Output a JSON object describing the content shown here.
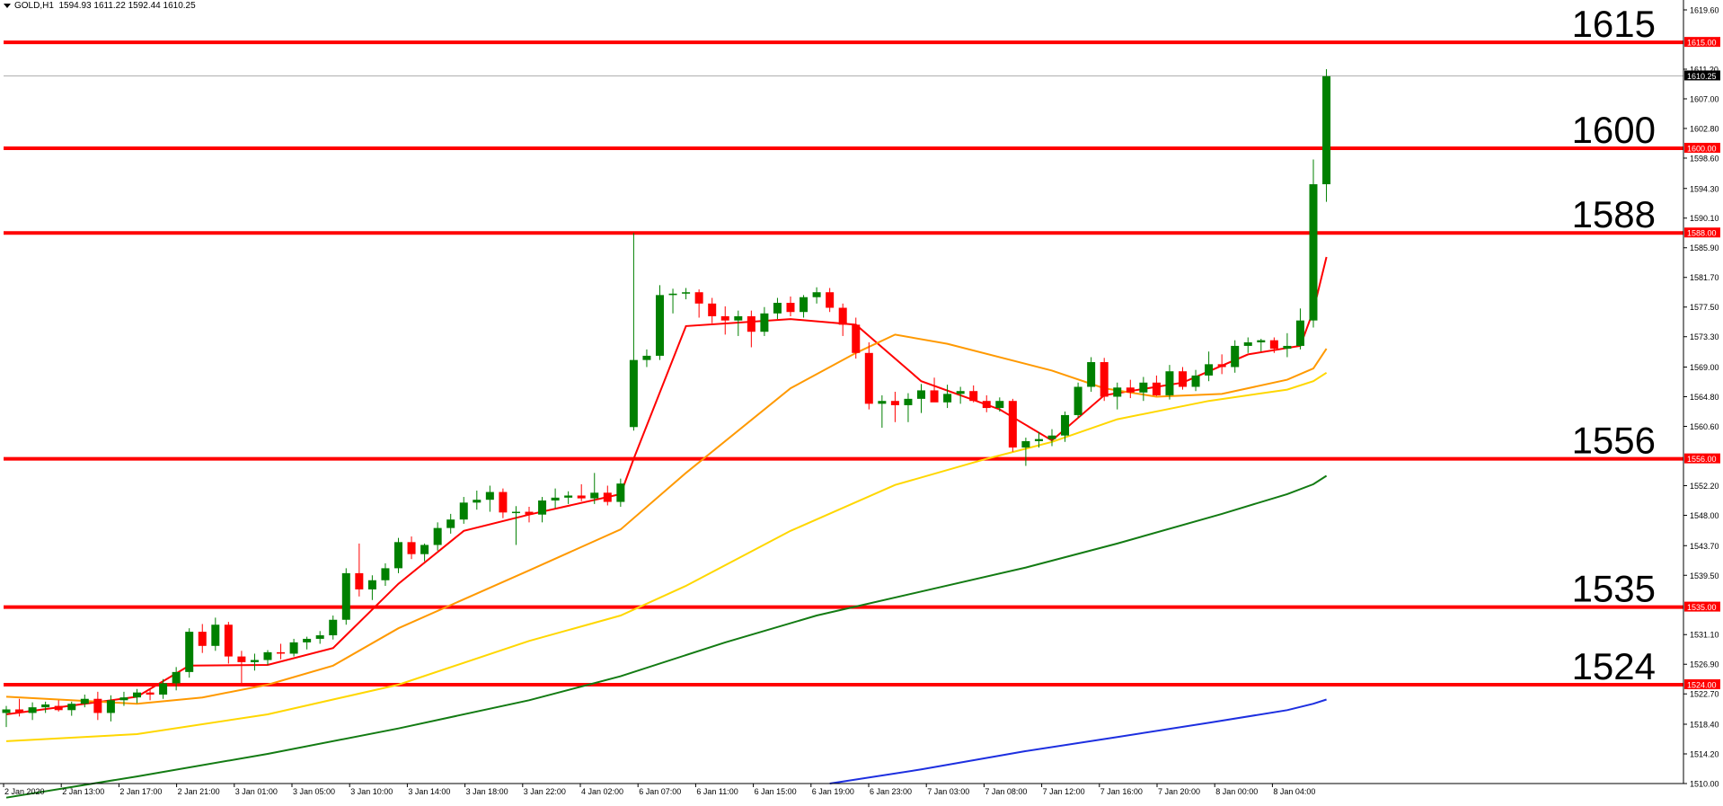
{
  "header": {
    "symbol_text": "GOLD,H1",
    "ohlc_text": "1594.93 1611.22 1592.44 1610.25"
  },
  "chart_data": {
    "type": "candlestick",
    "symbol": "GOLD",
    "timeframe": "H1",
    "ylim": [
      1510.0,
      1621.0
    ],
    "y_ticks": [
      "1619.60",
      "1615.00",
      "1611.20",
      "1610.25",
      "1607.00",
      "1602.80",
      "1600.00",
      "1598.60",
      "1594.30",
      "1590.10",
      "1588.00",
      "1585.90",
      "1581.70",
      "1577.50",
      "1573.30",
      "1569.00",
      "1564.80",
      "1560.60",
      "1556.00",
      "1552.20",
      "1548.00",
      "1543.70",
      "1539.50",
      "1535.00",
      "1531.10",
      "1526.90",
      "1524.00",
      "1522.70",
      "1518.40",
      "1514.20",
      "1510.00"
    ],
    "x_ticks": [
      "2 Jan 2020",
      "2 Jan 13:00",
      "2 Jan 17:00",
      "2 Jan 21:00",
      "3 Jan 01:00",
      "3 Jan 05:00",
      "3 Jan 10:00",
      "3 Jan 14:00",
      "3 Jan 18:00",
      "3 Jan 22:00",
      "4 Jan 02:00",
      "6 Jan 07:00",
      "6 Jan 11:00",
      "6 Jan 15:00",
      "6 Jan 19:00",
      "6 Jan 23:00",
      "7 Jan 03:00",
      "7 Jan 08:00",
      "7 Jan 12:00",
      "7 Jan 16:00",
      "7 Jan 20:00",
      "8 Jan 00:00",
      "8 Jan 04:00"
    ],
    "current_price": "1610.25",
    "levels": [
      {
        "value": 1615,
        "label": "1615",
        "axis_label": "1615.00"
      },
      {
        "value": 1600,
        "label": "1600",
        "axis_label": "1600.00"
      },
      {
        "value": 1588,
        "label": "1588",
        "axis_label": "1588.00"
      },
      {
        "value": 1556,
        "label": "1556",
        "axis_label": "1556.00"
      },
      {
        "value": 1535,
        "label": "1535",
        "axis_label": "1535.00"
      },
      {
        "value": 1524,
        "label": "1524",
        "axis_label": "1524.00"
      }
    ],
    "candles": [
      [
        1520.0,
        1521.0,
        1518.0,
        1520.5
      ],
      [
        1520.5,
        1522.0,
        1519.5,
        1520.0
      ],
      [
        1520.0,
        1521.5,
        1519.0,
        1520.8
      ],
      [
        1520.8,
        1521.6,
        1520.0,
        1521.2
      ],
      [
        1521.0,
        1521.8,
        1520.2,
        1520.4
      ],
      [
        1520.4,
        1521.6,
        1519.6,
        1521.3
      ],
      [
        1521.3,
        1522.6,
        1520.8,
        1522.0
      ],
      [
        1522.0,
        1523.0,
        1519.0,
        1520.0
      ],
      [
        1520.0,
        1522.5,
        1518.8,
        1521.8
      ],
      [
        1521.8,
        1523.0,
        1521.0,
        1522.2
      ],
      [
        1522.2,
        1523.4,
        1521.4,
        1522.9
      ],
      [
        1522.9,
        1523.5,
        1521.8,
        1522.6
      ],
      [
        1522.6,
        1524.8,
        1522.0,
        1524.2
      ],
      [
        1524.2,
        1526.5,
        1523.2,
        1525.8
      ],
      [
        1525.8,
        1532.0,
        1525.0,
        1531.5
      ],
      [
        1531.5,
        1532.6,
        1528.5,
        1529.5
      ],
      [
        1529.5,
        1533.5,
        1528.8,
        1532.5
      ],
      [
        1532.5,
        1532.9,
        1527.0,
        1528.0
      ],
      [
        1528.0,
        1528.8,
        1524.0,
        1527.2
      ],
      [
        1527.2,
        1528.4,
        1526.0,
        1527.5
      ],
      [
        1527.5,
        1528.9,
        1526.8,
        1528.6
      ],
      [
        1528.6,
        1529.8,
        1527.6,
        1528.4
      ],
      [
        1528.4,
        1530.5,
        1528.0,
        1530.0
      ],
      [
        1530.0,
        1530.8,
        1529.0,
        1530.5
      ],
      [
        1530.5,
        1531.6,
        1529.8,
        1531.0
      ],
      [
        1531.0,
        1533.8,
        1530.4,
        1533.2
      ],
      [
        1533.2,
        1540.5,
        1532.5,
        1539.8
      ],
      [
        1539.8,
        1544.0,
        1536.5,
        1537.5
      ],
      [
        1537.5,
        1539.5,
        1536.0,
        1538.8
      ],
      [
        1538.8,
        1541.2,
        1538.0,
        1540.5
      ],
      [
        1540.5,
        1544.8,
        1539.8,
        1544.2
      ],
      [
        1544.2,
        1545.0,
        1541.8,
        1542.5
      ],
      [
        1542.5,
        1544.0,
        1541.5,
        1543.8
      ],
      [
        1543.8,
        1547.0,
        1543.0,
        1546.2
      ],
      [
        1546.2,
        1548.2,
        1545.4,
        1547.4
      ],
      [
        1547.4,
        1550.6,
        1546.8,
        1549.8
      ],
      [
        1549.8,
        1551.5,
        1548.8,
        1550.2
      ],
      [
        1550.2,
        1552.2,
        1548.5,
        1551.3
      ],
      [
        1551.3,
        1551.8,
        1547.6,
        1548.4
      ],
      [
        1548.4,
        1549.3,
        1543.8,
        1548.5
      ],
      [
        1548.5,
        1549.2,
        1547.0,
        1548.1
      ],
      [
        1548.1,
        1550.6,
        1547.0,
        1550.1
      ],
      [
        1550.1,
        1551.8,
        1549.0,
        1550.5
      ],
      [
        1550.5,
        1551.4,
        1549.6,
        1550.8
      ],
      [
        1550.8,
        1552.4,
        1550.0,
        1550.4
      ],
      [
        1550.4,
        1554.0,
        1549.6,
        1551.2
      ],
      [
        1551.2,
        1552.2,
        1549.4,
        1549.9
      ],
      [
        1549.9,
        1553.2,
        1549.2,
        1552.5
      ],
      [
        1560.5,
        1588.0,
        1560.0,
        1570.0
      ],
      [
        1570.0,
        1571.5,
        1569.0,
        1570.6
      ],
      [
        1570.6,
        1580.6,
        1570.0,
        1579.2
      ],
      [
        1579.2,
        1580.1,
        1576.6,
        1579.4
      ],
      [
        1579.4,
        1580.2,
        1578.6,
        1579.6
      ],
      [
        1579.6,
        1580.0,
        1576.0,
        1578.0
      ],
      [
        1578.0,
        1578.8,
        1575.2,
        1576.2
      ],
      [
        1576.2,
        1577.6,
        1573.6,
        1575.6
      ],
      [
        1575.6,
        1577.0,
        1573.4,
        1576.2
      ],
      [
        1576.2,
        1577.0,
        1571.8,
        1574.0
      ],
      [
        1574.0,
        1577.5,
        1573.4,
        1576.6
      ],
      [
        1576.6,
        1578.8,
        1575.8,
        1578.1
      ],
      [
        1578.1,
        1579.0,
        1576.2,
        1576.8
      ],
      [
        1576.8,
        1579.2,
        1576.0,
        1578.9
      ],
      [
        1578.9,
        1580.3,
        1578.0,
        1579.6
      ],
      [
        1579.6,
        1580.2,
        1576.8,
        1577.4
      ],
      [
        1577.4,
        1578.0,
        1573.4,
        1575.0
      ],
      [
        1575.0,
        1576.0,
        1570.2,
        1571.0
      ],
      [
        1571.0,
        1572.5,
        1563.0,
        1563.8
      ],
      [
        1563.8,
        1565.0,
        1560.4,
        1564.2
      ],
      [
        1564.2,
        1565.5,
        1561.2,
        1563.6
      ],
      [
        1563.6,
        1565.3,
        1561.2,
        1564.5
      ],
      [
        1564.5,
        1566.6,
        1562.5,
        1565.7
      ],
      [
        1565.7,
        1567.5,
        1564.5,
        1564.0
      ],
      [
        1564.0,
        1566.5,
        1563.2,
        1565.2
      ],
      [
        1565.2,
        1566.2,
        1563.8,
        1565.6
      ],
      [
        1565.6,
        1566.4,
        1564.0,
        1564.2
      ],
      [
        1564.2,
        1565.0,
        1562.6,
        1563.2
      ],
      [
        1563.2,
        1564.7,
        1562.7,
        1564.2
      ],
      [
        1564.2,
        1564.5,
        1557.0,
        1557.6
      ],
      [
        1557.6,
        1559.0,
        1555.0,
        1558.5
      ],
      [
        1558.5,
        1559.8,
        1557.6,
        1558.8
      ],
      [
        1558.8,
        1560.2,
        1557.8,
        1559.3
      ],
      [
        1559.3,
        1562.7,
        1558.4,
        1562.2
      ],
      [
        1562.2,
        1566.8,
        1561.8,
        1566.2
      ],
      [
        1566.2,
        1570.4,
        1565.5,
        1569.7
      ],
      [
        1569.7,
        1570.3,
        1564.2,
        1564.8
      ],
      [
        1564.8,
        1566.8,
        1563.0,
        1566.1
      ],
      [
        1566.1,
        1567.2,
        1564.6,
        1565.4
      ],
      [
        1565.4,
        1567.6,
        1564.2,
        1566.8
      ],
      [
        1566.8,
        1567.8,
        1564.9,
        1565.0
      ],
      [
        1565.0,
        1569.3,
        1564.4,
        1568.4
      ],
      [
        1568.4,
        1569.0,
        1565.8,
        1566.2
      ],
      [
        1566.2,
        1568.6,
        1565.6,
        1567.8
      ],
      [
        1567.8,
        1571.2,
        1567.0,
        1569.4
      ],
      [
        1569.4,
        1570.8,
        1568.0,
        1569.0
      ],
      [
        1569.0,
        1572.8,
        1568.2,
        1572.0
      ],
      [
        1572.0,
        1573.2,
        1571.0,
        1572.5
      ],
      [
        1572.5,
        1573.0,
        1571.2,
        1572.8
      ],
      [
        1572.8,
        1573.2,
        1571.0,
        1571.6
      ],
      [
        1571.6,
        1573.8,
        1570.4,
        1572.0
      ],
      [
        1572.0,
        1577.3,
        1571.5,
        1575.6
      ],
      [
        1575.6,
        1598.4,
        1574.6,
        1594.9
      ],
      [
        1594.9,
        1611.2,
        1592.4,
        1610.2
      ]
    ],
    "moving_averages": [
      {
        "color": "#ff0000",
        "points": [
          [
            0,
            1519.8
          ],
          [
            10,
            1522.3
          ],
          [
            14,
            1526.7
          ],
          [
            20,
            1526.8
          ],
          [
            25,
            1529.2
          ],
          [
            30,
            1538.3
          ],
          [
            35,
            1545.8
          ],
          [
            40,
            1548.1
          ],
          [
            47,
            1551.0
          ],
          [
            48,
            1556.0
          ],
          [
            52,
            1574.8
          ],
          [
            60,
            1575.8
          ],
          [
            65,
            1575.0
          ],
          [
            70,
            1567.0
          ],
          [
            76,
            1563.0
          ],
          [
            80,
            1558.6
          ],
          [
            84,
            1565.0
          ],
          [
            90,
            1566.8
          ],
          [
            95,
            1570.8
          ],
          [
            99,
            1572.0
          ],
          [
            100,
            1577.0
          ],
          [
            101,
            1584.6
          ]
        ]
      },
      {
        "color": "#ff9900",
        "points": [
          [
            0,
            1522.3
          ],
          [
            10,
            1521.3
          ],
          [
            15,
            1522.2
          ],
          [
            20,
            1524.0
          ],
          [
            25,
            1526.7
          ],
          [
            30,
            1532.0
          ],
          [
            40,
            1540.2
          ],
          [
            47,
            1546.0
          ],
          [
            52,
            1554.0
          ],
          [
            60,
            1566.0
          ],
          [
            65,
            1571.0
          ],
          [
            68,
            1573.6
          ],
          [
            72,
            1572.3
          ],
          [
            80,
            1568.5
          ],
          [
            84,
            1566.0
          ],
          [
            88,
            1564.8
          ],
          [
            93,
            1565.2
          ],
          [
            98,
            1567.2
          ],
          [
            100,
            1568.8
          ],
          [
            101,
            1571.6
          ]
        ]
      },
      {
        "color": "#ffd700",
        "points": [
          [
            0,
            1516.0
          ],
          [
            10,
            1517.0
          ],
          [
            20,
            1519.8
          ],
          [
            30,
            1524.0
          ],
          [
            40,
            1530.2
          ],
          [
            47,
            1533.8
          ],
          [
            52,
            1538.0
          ],
          [
            60,
            1545.8
          ],
          [
            68,
            1552.3
          ],
          [
            75,
            1556.0
          ],
          [
            80,
            1558.4
          ],
          [
            85,
            1561.6
          ],
          [
            92,
            1564.2
          ],
          [
            98,
            1565.8
          ],
          [
            100,
            1567.0
          ],
          [
            101,
            1568.2
          ]
        ]
      },
      {
        "color": "#137b13",
        "points": [
          [
            0,
            1508.0
          ],
          [
            10,
            1511.0
          ],
          [
            20,
            1514.2
          ],
          [
            30,
            1517.8
          ],
          [
            40,
            1521.8
          ],
          [
            47,
            1525.2
          ],
          [
            55,
            1530.0
          ],
          [
            62,
            1533.8
          ],
          [
            70,
            1537.2
          ],
          [
            78,
            1540.6
          ],
          [
            85,
            1544.0
          ],
          [
            93,
            1548.2
          ],
          [
            98,
            1551.0
          ],
          [
            100,
            1552.4
          ],
          [
            101,
            1553.6
          ]
        ]
      },
      {
        "color": "#1d2fe0",
        "points": [
          [
            63,
            1510.0
          ],
          [
            70,
            1512.0
          ],
          [
            78,
            1514.6
          ],
          [
            85,
            1516.6
          ],
          [
            92,
            1518.6
          ],
          [
            98,
            1520.4
          ],
          [
            100,
            1521.3
          ],
          [
            101,
            1521.9
          ]
        ]
      }
    ],
    "colors": {
      "bull": "#008000",
      "bear": "#ff0000",
      "level": "#ff0000",
      "axis_text": "#000000",
      "price_line": "#b0b0b0"
    }
  }
}
